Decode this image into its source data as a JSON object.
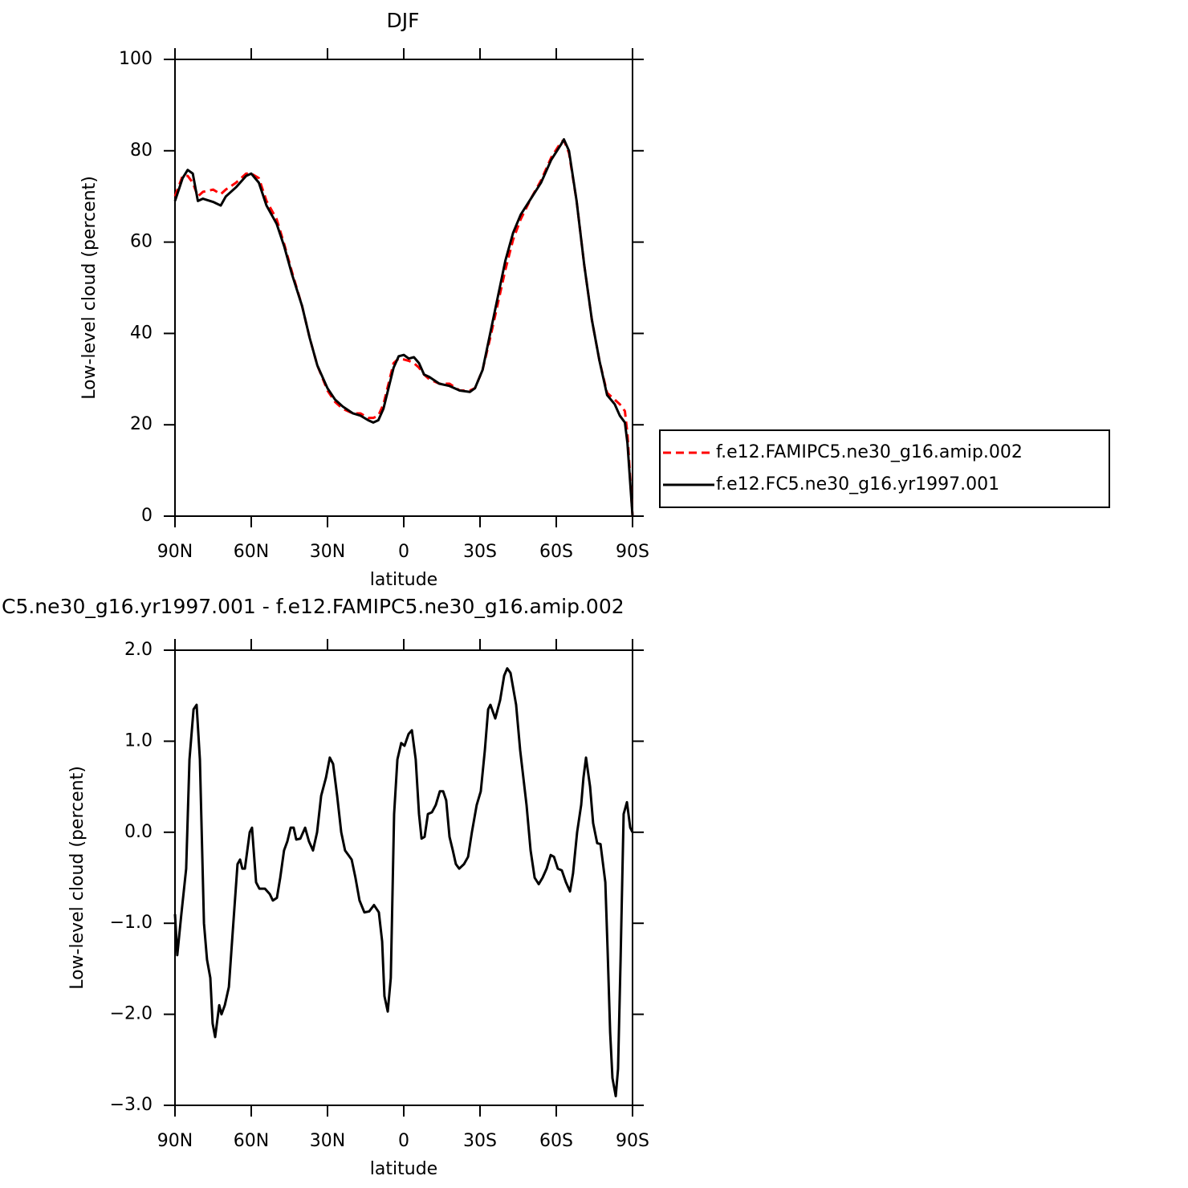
{
  "chart_data": [
    {
      "type": "line",
      "title": "DJF",
      "xlabel": "latitude",
      "ylabel": "Low-level cloud (percent)",
      "x": [
        90,
        87,
        85,
        83,
        81,
        79,
        75,
        72,
        70,
        66,
        62,
        60,
        57,
        54,
        50,
        47,
        44,
        40,
        37,
        34,
        30,
        27,
        24,
        20,
        17,
        14,
        12,
        10,
        8,
        6,
        4,
        2,
        0,
        -2,
        -4,
        -6,
        -8,
        -10,
        -14,
        -18,
        -22,
        -26,
        -28,
        -31,
        -34,
        -37,
        -40,
        -43,
        -46,
        -50,
        -54,
        -58,
        -62,
        -63,
        -65,
        -68,
        -71,
        -74,
        -77,
        -80,
        -83,
        -85,
        -87,
        -88,
        -89,
        -90
      ],
      "xlim": [
        90,
        -90
      ],
      "xticks": [
        {
          "value": 90,
          "label": "90N"
        },
        {
          "value": 60,
          "label": "60N"
        },
        {
          "value": 30,
          "label": "30N"
        },
        0,
        {
          "value": -30,
          "label": "30S"
        },
        {
          "value": -60,
          "label": "60S"
        },
        {
          "value": -90,
          "label": "90S"
        }
      ],
      "ylim": [
        0,
        100
      ],
      "yticks": [
        0,
        20,
        40,
        60,
        80,
        100
      ],
      "legend": "right",
      "series": [
        {
          "name": "f.e12.FAMIPC5.ne30_g16.amip.002",
          "color": "#ff0000",
          "dash": "dashed",
          "values": [
            70,
            74.5,
            74.5,
            73,
            70,
            71,
            71.5,
            70.5,
            71.5,
            73,
            75,
            75,
            74,
            69,
            65,
            59.5,
            53.5,
            46,
            39,
            33,
            27.5,
            25,
            23.5,
            22.5,
            22.5,
            21.5,
            21.5,
            22,
            24.5,
            29,
            33.5,
            34.5,
            34.3,
            34,
            33.5,
            32.5,
            31,
            30,
            29,
            29,
            27.5,
            27.5,
            28,
            32,
            39,
            46.5,
            54,
            60.5,
            65,
            69.5,
            73.5,
            78.5,
            82,
            82.3,
            79.5,
            69,
            55,
            43,
            34,
            27,
            25.5,
            24.5,
            23,
            18,
            9,
            0
          ]
        },
        {
          "name": "f.e12.FC5.ne30_g16.yr1997.001",
          "color": "#000000",
          "dash": "solid",
          "values": [
            69,
            74,
            75.8,
            75,
            69,
            69.5,
            68.8,
            68,
            70,
            72,
            74.5,
            75,
            73,
            68,
            64,
            59,
            53,
            46,
            39,
            33,
            28,
            25.5,
            24,
            22.5,
            22,
            21,
            20.5,
            21,
            23.5,
            28,
            32.5,
            35,
            35.3,
            34.5,
            34.8,
            33.5,
            31,
            30.5,
            29,
            28.5,
            27.5,
            27.2,
            28,
            32,
            40,
            48,
            56,
            62,
            66,
            69.5,
            73,
            78,
            81.5,
            82.5,
            80,
            69,
            55,
            43,
            34,
            26.5,
            24.5,
            22,
            20.5,
            16,
            8,
            0
          ]
        }
      ]
    },
    {
      "type": "line",
      "title": "C5.ne30_g16.yr1997.001 - f.e12.FAMIPC5.ne30_g16.amip.002",
      "xlabel": "latitude",
      "ylabel": "Low-level cloud (percent)",
      "x": [
        90,
        89.1,
        87.5,
        85.6,
        84.3,
        82.7,
        81.5,
        80.2,
        78.6,
        77.4,
        76.1,
        75.2,
        74.2,
        72.6,
        71.7,
        70.4,
        68.8,
        67.3,
        65.4,
        64.4,
        63.5,
        62.5,
        60.6,
        59.7,
        58.1,
        56.8,
        54.6,
        52.7,
        51.5,
        49.9,
        48.6,
        47.1,
        45.8,
        44.5,
        43.3,
        42.3,
        40.7,
        38.8,
        37.3,
        35.7,
        34.1,
        32.5,
        30.6,
        29.1,
        27.8,
        26.2,
        24.6,
        23.1,
        21.8,
        20.5,
        19.0,
        17.4,
        15.5,
        13.6,
        11.7,
        9.8,
        8.5,
        7.6,
        6.3,
        5.1,
        3.8,
        2.5,
        1.0,
        -0.3,
        -1.9,
        -3.2,
        -4.7,
        -6.0,
        -7.0,
        -8.2,
        -9.5,
        -11.1,
        -12.6,
        -14.2,
        -15.5,
        -16.7,
        -18.0,
        -19.3,
        -20.5,
        -21.8,
        -23.7,
        -25.3,
        -26.8,
        -28.7,
        -30.3,
        -31.9,
        -33.2,
        -34.1,
        -36.0,
        -37.9,
        -39.5,
        -40.7,
        -42.0,
        -44.2,
        -45.8,
        -48.3,
        -49.9,
        -51.5,
        -53.1,
        -54.6,
        -56.2,
        -57.8,
        -59.1,
        -60.6,
        -62.2,
        -63.8,
        -65.4,
        -66.6,
        -68.2,
        -69.8,
        -70.7,
        -71.7,
        -73.3,
        -74.5,
        -76.1,
        -77.4,
        -79.3,
        -80.2,
        -81.2,
        -82.1,
        -83.4,
        -84.3,
        -85.3,
        -86.5,
        -87.8,
        -89.1,
        -90
      ],
      "xlim": [
        90,
        -90
      ],
      "xticks": [
        {
          "value": 90,
          "label": "90N"
        },
        {
          "value": 60,
          "label": "60N"
        },
        {
          "value": 30,
          "label": "30N"
        },
        0,
        {
          "value": -30,
          "label": "30S"
        },
        {
          "value": -60,
          "label": "60S"
        },
        {
          "value": -90,
          "label": "90S"
        }
      ],
      "ylim": [
        -3,
        2
      ],
      "yticks": [
        {
          "value": -3,
          "label": "−3.0"
        },
        {
          "value": -2,
          "label": "−2.0"
        },
        {
          "value": -1,
          "label": "−1.0"
        },
        {
          "value": 0,
          "label": "0.0"
        },
        {
          "value": 1,
          "label": "1.0"
        },
        {
          "value": 2,
          "label": "2.0"
        }
      ],
      "series": [
        {
          "color": "#000000",
          "dash": "solid",
          "values": [
            -0.9,
            -1.35,
            -0.9,
            -0.4,
            0.8,
            1.35,
            1.4,
            0.8,
            -1.0,
            -1.4,
            -1.6,
            -2.1,
            -2.25,
            -1.9,
            -2.0,
            -1.9,
            -1.7,
            -1.1,
            -0.35,
            -0.3,
            -0.4,
            -0.4,
            0.0,
            0.05,
            -0.55,
            -0.62,
            -0.62,
            -0.68,
            -0.75,
            -0.72,
            -0.5,
            -0.2,
            -0.1,
            0.05,
            0.05,
            -0.08,
            -0.07,
            0.05,
            -0.1,
            -0.2,
            0.0,
            0.4,
            0.6,
            0.82,
            0.75,
            0.4,
            0.0,
            -0.2,
            -0.25,
            -0.3,
            -0.5,
            -0.75,
            -0.88,
            -0.87,
            -0.8,
            -0.88,
            -1.2,
            -1.8,
            -1.97,
            -1.6,
            0.2,
            0.8,
            0.98,
            0.95,
            1.08,
            1.12,
            0.8,
            0.2,
            -0.07,
            -0.05,
            0.2,
            0.22,
            0.3,
            0.45,
            0.45,
            0.35,
            -0.05,
            -0.2,
            -0.35,
            -0.4,
            -0.35,
            -0.27,
            0.0,
            0.3,
            0.45,
            0.9,
            1.35,
            1.4,
            1.25,
            1.45,
            1.72,
            1.8,
            1.75,
            1.4,
            0.9,
            0.3,
            -0.2,
            -0.5,
            -0.57,
            -0.5,
            -0.4,
            -0.25,
            -0.27,
            -0.4,
            -0.42,
            -0.55,
            -0.65,
            -0.45,
            0.0,
            0.3,
            0.6,
            0.82,
            0.5,
            0.1,
            -0.12,
            -0.13,
            -0.55,
            -1.3,
            -2.2,
            -2.7,
            -2.9,
            -2.6,
            -1.4,
            0.2,
            0.33,
            0.05,
            0.0
          ]
        }
      ]
    }
  ]
}
